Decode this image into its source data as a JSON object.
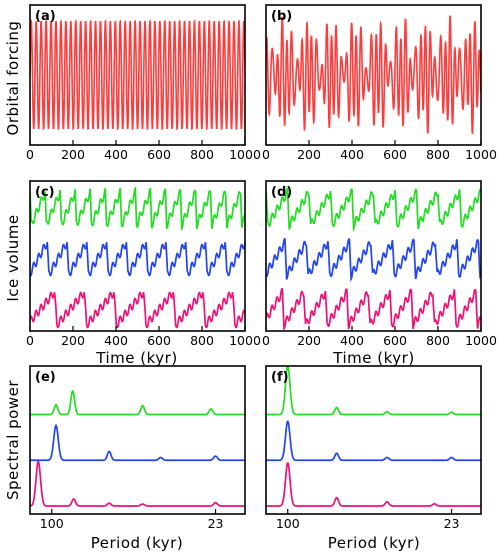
{
  "colors": {
    "red": "#ff3b3b",
    "green": "#22dd22",
    "blue": "#2244ee",
    "magenta": "#ee1177"
  },
  "chart_data": [
    {
      "id": "a",
      "label": "(a)",
      "type": "line",
      "ylabel": "Orbital forcing",
      "xlim": [
        0,
        1000
      ],
      "ylim": [
        -1.3,
        1.3
      ],
      "xticks": [
        "0",
        "200",
        "400",
        "600",
        "800",
        "1000"
      ],
      "series": [
        {
          "color": "#ff3b3b",
          "signal": "sinusoid",
          "period_kyr": 23,
          "amplitude": 1.0
        }
      ],
      "grid": false
    },
    {
      "id": "b",
      "label": "(b)",
      "type": "line",
      "xlim": [
        0,
        1000
      ],
      "ylim": [
        -1.3,
        1.3
      ],
      "xticks": [
        "0",
        "200",
        "400",
        "600",
        "800",
        "1000"
      ],
      "series": [
        {
          "color": "#ff3b3b",
          "signal": "quasi-periodic",
          "components": [
            {
              "period_kyr": 23,
              "amplitude": 0.62
            },
            {
              "period_kyr": 19,
              "amplitude": 0.28
            },
            {
              "period_kyr": 41,
              "amplitude": 0.22
            }
          ]
        }
      ],
      "grid": false
    },
    {
      "id": "c",
      "label": "(c)",
      "type": "line",
      "ylabel": "Ice volume",
      "xlabel": "Time (kyr)",
      "xlim": [
        0,
        1000
      ],
      "xticks": [
        "0",
        "200",
        "400",
        "600",
        "800",
        "1000"
      ],
      "series": [
        {
          "color": "#22dd22",
          "signal": "sawtooth",
          "cycle_kyr": 70,
          "offset": 2
        },
        {
          "color": "#2244ee",
          "signal": "sawtooth",
          "cycle_kyr": 92,
          "offset": 1
        },
        {
          "color": "#ee1177",
          "signal": "sawtooth",
          "cycle_kyr": 138,
          "offset": 0
        }
      ],
      "grid": false
    },
    {
      "id": "d",
      "label": "(d)",
      "type": "line",
      "xlabel": "Time (kyr)",
      "xlim": [
        0,
        1000
      ],
      "xticks": [
        "0",
        "200",
        "400",
        "600",
        "800",
        "1000"
      ],
      "series": [
        {
          "color": "#22dd22",
          "signal": "sawtooth",
          "cycle_kyr": 100,
          "offset": 2
        },
        {
          "color": "#2244ee",
          "signal": "sawtooth",
          "cycle_kyr": 100,
          "offset": 1
        },
        {
          "color": "#ee1177",
          "signal": "sawtooth",
          "cycle_kyr": 100,
          "offset": 0
        }
      ],
      "grid": false
    },
    {
      "id": "e",
      "label": "(e)",
      "type": "line",
      "ylabel": "Spectral power",
      "xlabel": "Period (kyr)",
      "x_scale": "reciprocal",
      "xlim_period": [
        180,
        20.2
      ],
      "xticks": [
        "100",
        "23"
      ],
      "series": [
        {
          "color": "#22dd22",
          "offset": 2,
          "peaks": [
            {
              "period": 92,
              "power": 0.35
            },
            {
              "period": 70,
              "power": 0.85
            },
            {
              "period": 35,
              "power": 0.32
            },
            {
              "period": 23.5,
              "power": 0.2
            }
          ]
        },
        {
          "color": "#2244ee",
          "offset": 1,
          "peaks": [
            {
              "period": 92,
              "power": 1.25
            },
            {
              "period": 46,
              "power": 0.32
            },
            {
              "period": 31,
              "power": 0.1
            },
            {
              "period": 23,
              "power": 0.15
            }
          ]
        },
        {
          "color": "#ee1177",
          "offset": 0,
          "peaks": [
            {
              "period": 138,
              "power": 1.6
            },
            {
              "period": 69,
              "power": 0.25
            },
            {
              "period": 46,
              "power": 0.1
            },
            {
              "period": 35,
              "power": 0.07
            },
            {
              "period": 23,
              "power": 0.12
            }
          ]
        }
      ],
      "grid": false
    },
    {
      "id": "f",
      "label": "(f)",
      "type": "line",
      "xlabel": "Period (kyr)",
      "x_scale": "reciprocal",
      "xlim_period": [
        180,
        20.2
      ],
      "xticks": [
        "100",
        "23"
      ],
      "series": [
        {
          "color": "#22dd22",
          "offset": 2,
          "peaks": [
            {
              "period": 100,
              "power": 1.75
            },
            {
              "period": 50,
              "power": 0.25
            },
            {
              "period": 33,
              "power": 0.1
            },
            {
              "period": 23,
              "power": 0.08
            }
          ]
        },
        {
          "color": "#2244ee",
          "offset": 1,
          "peaks": [
            {
              "period": 100,
              "power": 1.4
            },
            {
              "period": 50,
              "power": 0.25
            },
            {
              "period": 33,
              "power": 0.1
            },
            {
              "period": 23,
              "power": 0.1
            }
          ]
        },
        {
          "color": "#ee1177",
          "offset": 0,
          "peaks": [
            {
              "period": 100,
              "power": 1.55
            },
            {
              "period": 50,
              "power": 0.3
            },
            {
              "period": 33,
              "power": 0.15
            },
            {
              "period": 25,
              "power": 0.08
            }
          ]
        }
      ],
      "grid": false
    }
  ]
}
